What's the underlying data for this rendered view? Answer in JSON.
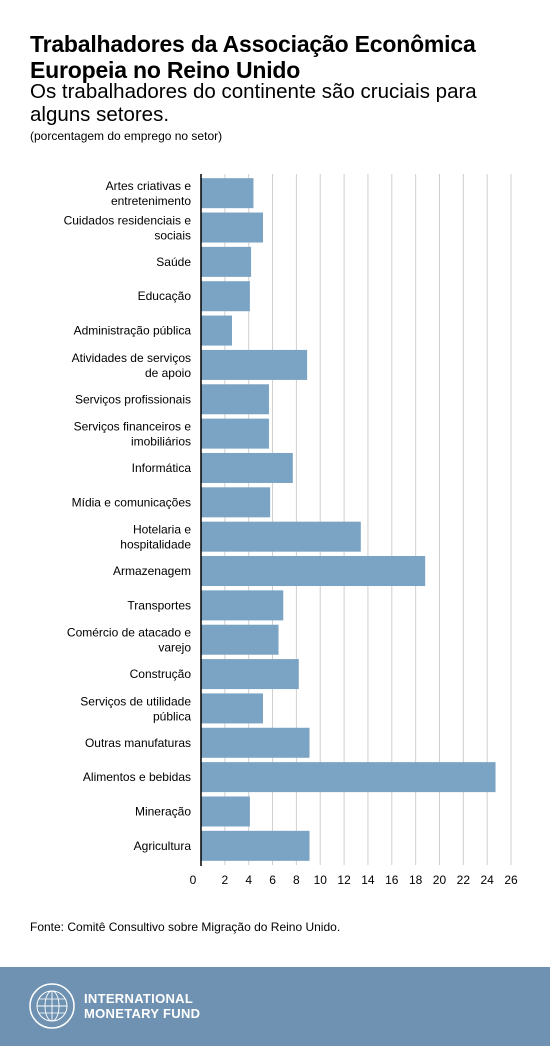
{
  "header": {
    "title": "Trabalhadores da Associação Econômica Europeia no Reino Unido",
    "subtitle": "Os trabalhadores do continente são cruciais para alguns setores.",
    "note": "(porcentagem do emprego no setor)"
  },
  "source": "Fonte: Comitê Consultivo sobre Migração do Reino Unido.",
  "footer": {
    "org_line1": "INTERNATIONAL",
    "org_line2": "MONETARY FUND",
    "logo_icon": "imf-seal-icon"
  },
  "colors": {
    "bar": "#7aa3c4",
    "grid": "#cfcfcf",
    "axis": "#000000",
    "footer": "#6f92b2"
  },
  "chart_data": {
    "type": "bar",
    "orientation": "horizontal",
    "categories": [
      "Artes criativas e entretenimento",
      "Cuidados residenciais e sociais",
      "Saúde",
      "Educação",
      "Administração pública",
      "Atividades de serviços de apoio",
      "Serviços profissionais",
      "Serviços financeiros e imobiliários",
      "Informática",
      "Mídia e comunicações",
      "Hotelaria e hospitalidade",
      "Armazenagem",
      "Transportes",
      "Comércio de atacado e varejo",
      "Construção",
      "Serviços de utilidade pública",
      "Outras manufaturas",
      "Alimentos e bebidas",
      "Mineração",
      "Agricultura"
    ],
    "values": [
      4.4,
      5.2,
      4.2,
      4.1,
      2.6,
      8.9,
      5.7,
      5.7,
      7.7,
      5.8,
      13.4,
      18.8,
      6.9,
      6.5,
      8.2,
      5.2,
      9.1,
      24.7,
      4.1,
      9.1
    ],
    "xticks": [
      0,
      2,
      4,
      6,
      8,
      10,
      12,
      14,
      16,
      18,
      20,
      22,
      24,
      26
    ],
    "xlim": [
      0,
      26.5
    ],
    "grid": true,
    "xlabel": "",
    "ylabel": ""
  }
}
